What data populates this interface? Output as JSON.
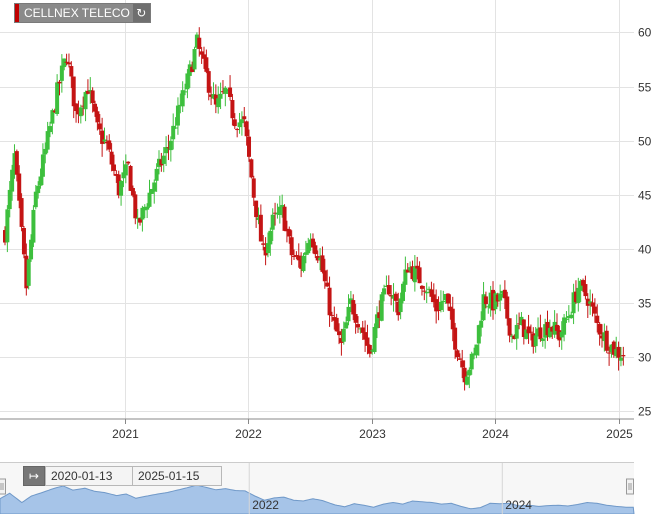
{
  "title": "CELLNEX TELECO",
  "reload_icon": "reload-icon",
  "range": {
    "from": "2020-01-13",
    "to": "2025-01-15",
    "toggle_icon": "range-arrows-icon"
  },
  "colors": {
    "up": "#3dbf3d",
    "down": "#c41414",
    "navigator_fill": "#a6c4e8",
    "navigator_line": "#6f98c8"
  },
  "chart_data": {
    "type": "candlestick",
    "title": "CELLNEX TELECO",
    "xlabel": "",
    "ylabel": "",
    "ylim": [
      24.3,
      63
    ],
    "xlim": [
      "2020-01-13",
      "2025-01-15"
    ],
    "yticks": [
      25,
      30,
      35,
      40,
      45,
      50,
      55,
      60
    ],
    "xticks": [
      "2021",
      "2022",
      "2023",
      "2024",
      "2025"
    ],
    "grid": true,
    "y_axis_side": "right",
    "navigator_ticks": [
      "2022",
      "2024"
    ],
    "ohlc_anchors": [
      [
        "2020-01-13",
        41.5
      ],
      [
        "2020-02-10",
        48.5
      ],
      [
        "2020-03-16",
        36.5
      ],
      [
        "2020-04-13",
        45.0
      ],
      [
        "2020-05-11",
        49.0
      ],
      [
        "2020-06-15",
        54.5
      ],
      [
        "2020-07-13",
        58.0
      ],
      [
        "2020-08-10",
        52.5
      ],
      [
        "2020-09-14",
        55.0
      ],
      [
        "2020-10-12",
        51.0
      ],
      [
        "2020-11-09",
        49.5
      ],
      [
        "2020-12-14",
        45.5
      ],
      [
        "2021-01-11",
        47.5
      ],
      [
        "2021-02-08",
        42.0
      ],
      [
        "2021-03-08",
        44.5
      ],
      [
        "2021-04-12",
        47.5
      ],
      [
        "2021-05-10",
        49.5
      ],
      [
        "2021-06-07",
        52.5
      ],
      [
        "2021-07-05",
        55.5
      ],
      [
        "2021-08-02",
        59.0
      ],
      [
        "2021-08-30",
        56.0
      ],
      [
        "2021-09-27",
        53.0
      ],
      [
        "2021-10-25",
        54.5
      ],
      [
        "2021-11-22",
        52.0
      ],
      [
        "2021-12-20",
        51.5
      ],
      [
        "2022-01-17",
        45.0
      ],
      [
        "2022-02-14",
        39.5
      ],
      [
        "2022-03-14",
        42.5
      ],
      [
        "2022-04-11",
        43.5
      ],
      [
        "2022-05-09",
        39.5
      ],
      [
        "2022-06-06",
        38.5
      ],
      [
        "2022-07-04",
        41.5
      ],
      [
        "2022-08-01",
        39.0
      ],
      [
        "2022-09-05",
        33.5
      ],
      [
        "2022-10-03",
        31.0
      ],
      [
        "2022-10-31",
        35.0
      ],
      [
        "2022-11-28",
        33.0
      ],
      [
        "2022-12-26",
        30.5
      ],
      [
        "2023-01-23",
        34.5
      ],
      [
        "2023-02-20",
        36.5
      ],
      [
        "2023-03-20",
        34.5
      ],
      [
        "2023-04-17",
        38.5
      ],
      [
        "2023-05-15",
        37.5
      ],
      [
        "2023-06-12",
        36.5
      ],
      [
        "2023-07-10",
        34.5
      ],
      [
        "2023-08-07",
        35.5
      ],
      [
        "2023-09-04",
        31.5
      ],
      [
        "2023-10-02",
        28.5
      ],
      [
        "2023-10-30",
        30.0
      ],
      [
        "2023-11-27",
        35.5
      ],
      [
        "2023-12-25",
        35.0
      ],
      [
        "2024-01-22",
        35.5
      ],
      [
        "2024-02-19",
        32.0
      ],
      [
        "2024-03-18",
        33.0
      ],
      [
        "2024-04-15",
        31.5
      ],
      [
        "2024-05-13",
        32.5
      ],
      [
        "2024-06-10",
        33.0
      ],
      [
        "2024-07-08",
        32.0
      ],
      [
        "2024-08-05",
        34.0
      ],
      [
        "2024-09-02",
        36.5
      ],
      [
        "2024-09-30",
        35.5
      ],
      [
        "2024-10-28",
        33.0
      ],
      [
        "2024-11-25",
        31.5
      ],
      [
        "2024-12-23",
        30.5
      ],
      [
        "2025-01-15",
        30.3
      ]
    ]
  }
}
